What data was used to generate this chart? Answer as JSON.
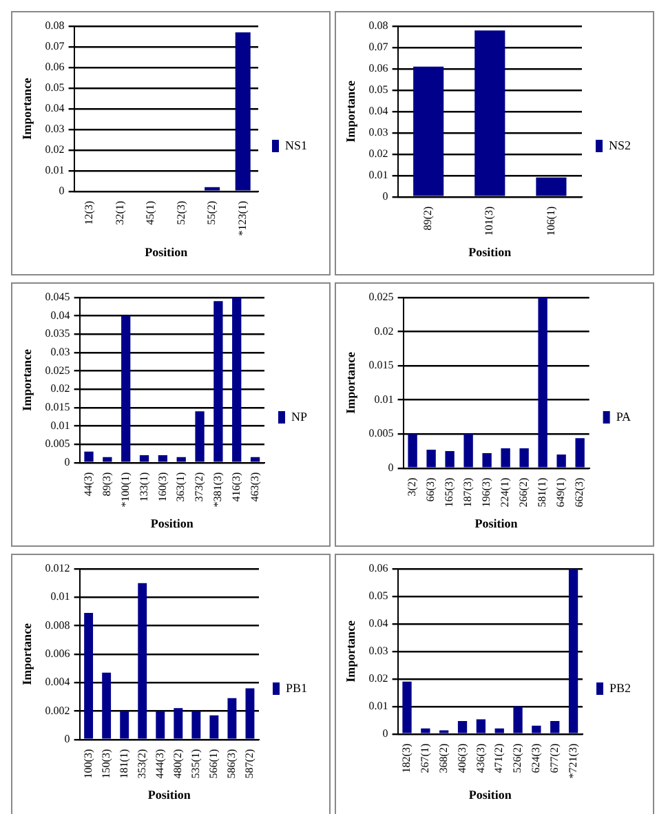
{
  "chart_data": [
    {
      "type": "bar",
      "xlabel": "Position",
      "ylabel": "Importance",
      "categories": [
        "12(3)",
        "32(1)",
        "45(1)",
        "52(3)",
        "55(2)",
        "*123(1)"
      ],
      "series": [
        {
          "name": "NS1",
          "color": "#00008b",
          "values": [
            0,
            0,
            0,
            0,
            0.002,
            0.077
          ]
        }
      ],
      "ylim": [
        0,
        0.08
      ],
      "yticks": [
        0,
        0.01,
        0.02,
        0.03,
        0.04,
        0.05,
        0.06,
        0.07,
        0.08
      ],
      "grid": "y",
      "legend": "right"
    },
    {
      "type": "bar",
      "xlabel": "Position",
      "ylabel": "Importance",
      "categories": [
        "89(2)",
        "101(3)",
        "106(1)"
      ],
      "series": [
        {
          "name": "NS2",
          "color": "#00008b",
          "values": [
            0.061,
            0.078,
            0.009
          ]
        }
      ],
      "ylim": [
        0,
        0.08
      ],
      "yticks": [
        0,
        0.01,
        0.02,
        0.03,
        0.04,
        0.05,
        0.06,
        0.07,
        0.08
      ],
      "grid": "y",
      "legend": "right"
    },
    {
      "type": "bar",
      "xlabel": "Position",
      "ylabel": "Importance",
      "categories": [
        "44(3)",
        "89(3)",
        "*100(1)",
        "133(1)",
        "160(3)",
        "363(1)",
        "373(2)",
        "*381(3)",
        "416(3)",
        "463(3)"
      ],
      "series": [
        {
          "name": "NP",
          "color": "#00008b",
          "values": [
            0.003,
            0.0015,
            0.04,
            0.002,
            0.002,
            0.0015,
            0.014,
            0.044,
            0.045,
            0.0015
          ]
        }
      ],
      "ylim": [
        0,
        0.045
      ],
      "yticks": [
        0,
        0.005,
        0.01,
        0.015,
        0.02,
        0.025,
        0.03,
        0.035,
        0.04,
        0.045
      ],
      "grid": "y",
      "legend": "right"
    },
    {
      "type": "bar",
      "xlabel": "Position",
      "ylabel": "Importance",
      "categories": [
        "3(2)",
        "66(3)",
        "165(3)",
        "187(3)",
        "196(3)",
        "224(1)",
        "266(2)",
        "581(1)",
        "649(1)",
        "662(3)"
      ],
      "series": [
        {
          "name": "PA",
          "color": "#00008b",
          "values": [
            0.005,
            0.0027,
            0.0025,
            0.005,
            0.0022,
            0.0029,
            0.0029,
            0.025,
            0.002,
            0.0044
          ]
        }
      ],
      "ylim": [
        0,
        0.025
      ],
      "yticks": [
        0,
        0.005,
        0.01,
        0.015,
        0.02,
        0.025
      ],
      "grid": "y",
      "legend": "right"
    },
    {
      "type": "bar",
      "xlabel": "Position",
      "ylabel": "Importance",
      "categories": [
        "100(3)",
        "150(3)",
        "181(1)",
        "353(2)",
        "444(3)",
        "480(2)",
        "535(1)",
        "566(1)",
        "586(3)",
        "587(2)"
      ],
      "series": [
        {
          "name": "PB1",
          "color": "#00008b",
          "values": [
            0.0089,
            0.0047,
            0.002,
            0.011,
            0.002,
            0.0022,
            0.002,
            0.0017,
            0.0029,
            0.0036
          ]
        }
      ],
      "ylim": [
        0,
        0.012
      ],
      "yticks": [
        0,
        0.002,
        0.004,
        0.006,
        0.008,
        0.01,
        0.012
      ],
      "grid": "y",
      "legend": "right"
    },
    {
      "type": "bar",
      "xlabel": "Position",
      "ylabel": "Importance",
      "categories": [
        "182(3)",
        "267(1)",
        "368(2)",
        "406(3)",
        "436(3)",
        "471(2)",
        "526(2)",
        "624(3)",
        "677(2)",
        "*721(3)"
      ],
      "series": [
        {
          "name": "PB2",
          "color": "#00008b",
          "values": [
            0.019,
            0.002,
            0.0013,
            0.0047,
            0.0053,
            0.002,
            0.01,
            0.003,
            0.0047,
            0.06
          ]
        }
      ],
      "ylim": [
        0,
        0.06
      ],
      "yticks": [
        0,
        0.01,
        0.02,
        0.03,
        0.04,
        0.05,
        0.06
      ],
      "grid": "y",
      "legend": "right"
    }
  ]
}
